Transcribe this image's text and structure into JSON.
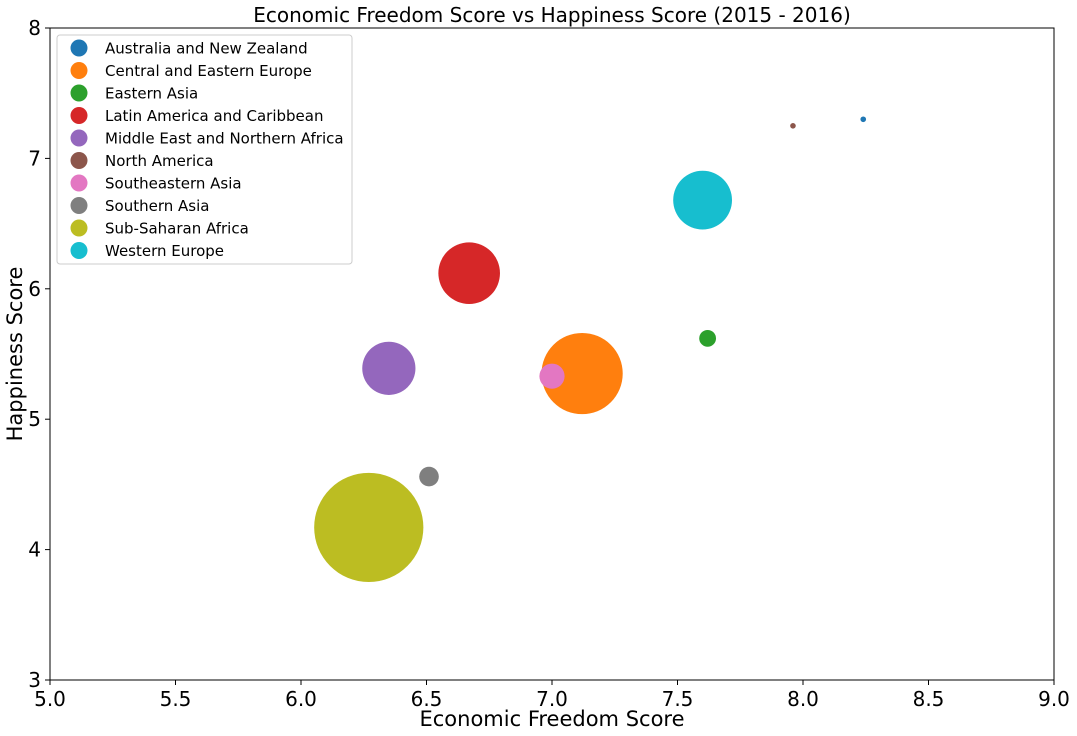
{
  "chart_data": {
    "type": "scatter",
    "title": "Economic Freedom Score vs Happiness Score (2015 - 2016)",
    "xlabel": "Economic Freedom Score",
    "ylabel": "Happiness Score",
    "xlim": [
      5.0,
      9.0
    ],
    "ylim": [
      3,
      8
    ],
    "xticks": [
      "5.0",
      "5.5",
      "6.0",
      "6.5",
      "7.0",
      "7.5",
      "8.0",
      "8.5",
      "9.0"
    ],
    "yticks": [
      "3",
      "4",
      "5",
      "6",
      "7",
      "8"
    ],
    "grid": false,
    "legend_position": "top-left",
    "series": [
      {
        "name": "Australia and New Zealand",
        "color": "#1f77b4",
        "x": 8.24,
        "y": 7.3,
        "size": 2
      },
      {
        "name": "Central and Eastern Europe",
        "color": "#ff7f0e",
        "x": 7.12,
        "y": 5.35,
        "size": 29
      },
      {
        "name": "Eastern Asia",
        "color": "#2ca02c",
        "x": 7.62,
        "y": 5.62,
        "size": 6
      },
      {
        "name": "Latin America and Caribbean",
        "color": "#d62728",
        "x": 6.67,
        "y": 6.12,
        "size": 22
      },
      {
        "name": "Middle East and Northern Africa",
        "color": "#9467bd",
        "x": 6.35,
        "y": 5.39,
        "size": 19
      },
      {
        "name": "North America",
        "color": "#8c564b",
        "x": 7.96,
        "y": 7.25,
        "size": 2
      },
      {
        "name": "Southeastern Asia",
        "color": "#e377c2",
        "x": 7.0,
        "y": 5.33,
        "size": 9
      },
      {
        "name": "Southern Asia",
        "color": "#7f7f7f",
        "x": 6.51,
        "y": 4.56,
        "size": 7
      },
      {
        "name": "Sub-Saharan Africa",
        "color": "#bcbd22",
        "x": 6.27,
        "y": 4.17,
        "size": 39
      },
      {
        "name": "Western Europe",
        "color": "#17becf",
        "x": 7.6,
        "y": 6.68,
        "size": 21
      }
    ]
  }
}
